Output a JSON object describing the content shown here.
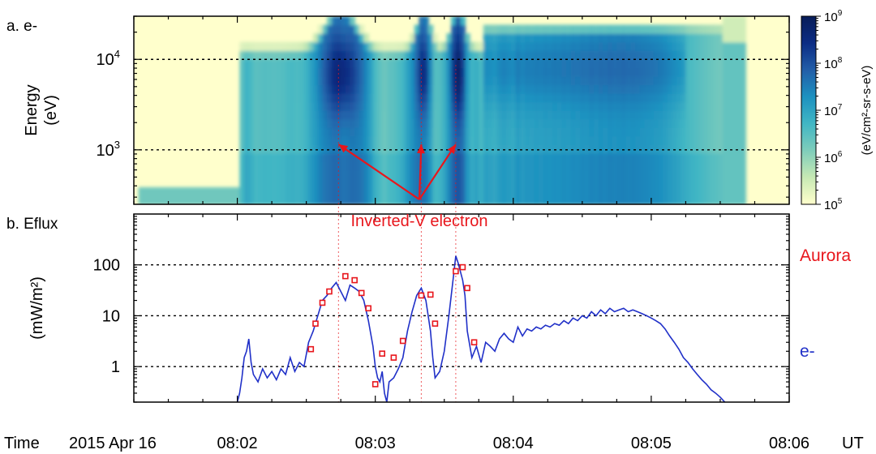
{
  "chart_data": [
    {
      "type": "heatmap",
      "panel_label": "a. e-",
      "ylabel": "Energy",
      "ylabel_unit": "(eV)",
      "yscale": "log",
      "ylim": [
        250,
        30000
      ],
      "y_ticks": [
        {
          "value": 1000,
          "base": "10",
          "exp": "3"
        },
        {
          "value": 10000,
          "base": "10",
          "exp": "4"
        }
      ],
      "xlim": [
        "08:01:15",
        "08:06:00"
      ],
      "colorbar": {
        "label": "(eV/cm²-sr-s-eV)",
        "scale": "log",
        "range": [
          100000,
          1000000000
        ],
        "ticks": [
          {
            "value": 100000,
            "base": "10",
            "exp": "5"
          },
          {
            "value": 1000000,
            "base": "10",
            "exp": "6"
          },
          {
            "value": 10000000,
            "base": "10",
            "exp": "7"
          },
          {
            "value": 100000000,
            "base": "10",
            "exp": "8"
          },
          {
            "value": 1000000000,
            "base": "10",
            "exp": "9"
          }
        ],
        "colors": [
          "#ffffcc",
          "#c7e9b4",
          "#7fcdbb",
          "#41b6c4",
          "#1d91c0",
          "#225ea8",
          "#0c2c84",
          "#081d58"
        ]
      },
      "annotation": {
        "text": "Inverted-V electron",
        "color": "#e8161c",
        "arrow_targets": [
          "08:02:44",
          "08:03:20",
          "08:03:35"
        ]
      },
      "gridlines": [
        1000,
        10000
      ]
    },
    {
      "type": "line",
      "panel_label": "b. Eflux",
      "ylabel": "(mW/m²)",
      "yscale": "log",
      "ylim": [
        0.2,
        1000
      ],
      "y_ticks": [
        "1",
        "10",
        "100"
      ],
      "y_tick_values": [
        1,
        10,
        100
      ],
      "xlim": [
        "08:01:15",
        "08:06:00"
      ],
      "series": [
        {
          "name": "Aurora",
          "color": "#e8161c",
          "marker": "square",
          "points": [
            [
              "08:02:32",
              2.2
            ],
            [
              "08:02:34",
              7
            ],
            [
              "08:02:37",
              18
            ],
            [
              "08:02:40",
              30
            ],
            [
              "08:02:47",
              60
            ],
            [
              "08:02:51",
              50
            ],
            [
              "08:02:54",
              28
            ],
            [
              "08:02:57",
              14
            ],
            [
              "08:03:00",
              0.45
            ],
            [
              "08:03:03",
              1.8
            ],
            [
              "08:03:08",
              1.5
            ],
            [
              "08:03:12",
              3.2
            ],
            [
              "08:03:20",
              25
            ],
            [
              "08:03:24",
              26
            ],
            [
              "08:03:26",
              7
            ],
            [
              "08:03:35",
              75
            ],
            [
              "08:03:38",
              90
            ],
            [
              "08:03:40",
              35
            ],
            [
              "08:03:43",
              3
            ]
          ]
        },
        {
          "name": "e-",
          "color": "#2030c8",
          "points": [
            [
              "08:02:00",
              0.2
            ],
            [
              "08:02:01",
              0.3
            ],
            [
              "08:02:02",
              0.6
            ],
            [
              "08:02:03",
              1.5
            ],
            [
              "08:02:04",
              2.0
            ],
            [
              "08:02:05",
              3.5
            ],
            [
              "08:02:06",
              1.2
            ],
            [
              "08:02:07",
              0.7
            ],
            [
              "08:02:09",
              0.5
            ],
            [
              "08:02:11",
              0.9
            ],
            [
              "08:02:13",
              0.6
            ],
            [
              "08:02:15",
              0.8
            ],
            [
              "08:02:17",
              0.55
            ],
            [
              "08:02:19",
              0.9
            ],
            [
              "08:02:21",
              0.7
            ],
            [
              "08:02:23",
              1.5
            ],
            [
              "08:02:25",
              0.8
            ],
            [
              "08:02:27",
              1.2
            ],
            [
              "08:02:29",
              1.0
            ],
            [
              "08:02:31",
              3.0
            ],
            [
              "08:02:33",
              5.0
            ],
            [
              "08:02:35",
              10
            ],
            [
              "08:02:37",
              20
            ],
            [
              "08:02:39",
              25
            ],
            [
              "08:02:41",
              35
            ],
            [
              "08:02:43",
              45
            ],
            [
              "08:02:45",
              30
            ],
            [
              "08:02:47",
              20
            ],
            [
              "08:02:49",
              40
            ],
            [
              "08:02:51",
              35
            ],
            [
              "08:02:53",
              30
            ],
            [
              "08:02:55",
              20
            ],
            [
              "08:02:57",
              8
            ],
            [
              "08:02:59",
              2.5
            ],
            [
              "08:03:00",
              1.0
            ],
            [
              "08:03:01",
              0.6
            ],
            [
              "08:03:02",
              0.5
            ],
            [
              "08:03:03",
              0.8
            ],
            [
              "08:03:04",
              0.3
            ],
            [
              "08:03:05",
              0.2
            ],
            [
              "08:03:06",
              0.5
            ],
            [
              "08:03:08",
              0.6
            ],
            [
              "08:03:10",
              0.9
            ],
            [
              "08:03:12",
              1.5
            ],
            [
              "08:03:14",
              5.0
            ],
            [
              "08:03:16",
              12
            ],
            [
              "08:03:18",
              25
            ],
            [
              "08:03:20",
              35
            ],
            [
              "08:03:22",
              20
            ],
            [
              "08:03:24",
              5.0
            ],
            [
              "08:03:25",
              1.5
            ],
            [
              "08:03:26",
              0.6
            ],
            [
              "08:03:28",
              0.8
            ],
            [
              "08:03:30",
              2.0
            ],
            [
              "08:03:32",
              10
            ],
            [
              "08:03:34",
              60
            ],
            [
              "08:03:35",
              150
            ],
            [
              "08:03:36",
              110
            ],
            [
              "08:03:38",
              50
            ],
            [
              "08:03:39",
              25
            ],
            [
              "08:03:40",
              5.0
            ],
            [
              "08:03:42",
              1.5
            ],
            [
              "08:03:44",
              2.5
            ],
            [
              "08:03:46",
              1.2
            ],
            [
              "08:03:48",
              3.0
            ],
            [
              "08:03:50",
              2.5
            ],
            [
              "08:03:52",
              2.0
            ],
            [
              "08:03:54",
              3.5
            ],
            [
              "08:03:56",
              4.5
            ],
            [
              "08:03:58",
              3.5
            ],
            [
              "08:04:00",
              3.0
            ],
            [
              "08:04:02",
              6.0
            ],
            [
              "08:04:04",
              4.0
            ],
            [
              "08:04:06",
              5.5
            ],
            [
              "08:04:08",
              5.0
            ],
            [
              "08:04:10",
              6.0
            ],
            [
              "08:04:12",
              5.5
            ],
            [
              "08:04:14",
              6.5
            ],
            [
              "08:04:16",
              6.0
            ],
            [
              "08:04:18",
              7.0
            ],
            [
              "08:04:20",
              6.5
            ],
            [
              "08:04:22",
              8.0
            ],
            [
              "08:04:24",
              7.0
            ],
            [
              "08:04:26",
              9.0
            ],
            [
              "08:04:28",
              8.0
            ],
            [
              "08:04:30",
              10
            ],
            [
              "08:04:32",
              9.0
            ],
            [
              "08:04:34",
              12
            ],
            [
              "08:04:36",
              10
            ],
            [
              "08:04:38",
              13
            ],
            [
              "08:04:40",
              11
            ],
            [
              "08:04:42",
              14
            ],
            [
              "08:04:44",
              12
            ],
            [
              "08:04:46",
              13
            ],
            [
              "08:04:48",
              14
            ],
            [
              "08:04:50",
              12
            ],
            [
              "08:04:52",
              13
            ],
            [
              "08:04:54",
              12
            ],
            [
              "08:04:56",
              11
            ],
            [
              "08:04:58",
              10
            ],
            [
              "08:05:00",
              9.0
            ],
            [
              "08:05:02",
              8.0
            ],
            [
              "08:05:04",
              7.0
            ],
            [
              "08:05:06",
              5.5
            ],
            [
              "08:05:08",
              4.0
            ],
            [
              "08:05:10",
              3.0
            ],
            [
              "08:05:12",
              2.2
            ],
            [
              "08:05:14",
              1.5
            ],
            [
              "08:05:16",
              1.2
            ],
            [
              "08:05:18",
              0.9
            ],
            [
              "08:05:20",
              0.7
            ],
            [
              "08:05:22",
              0.55
            ],
            [
              "08:05:24",
              0.45
            ],
            [
              "08:05:26",
              0.35
            ],
            [
              "08:05:28",
              0.3
            ],
            [
              "08:05:30",
              0.25
            ],
            [
              "08:05:32",
              0.2
            ]
          ]
        }
      ],
      "gridlines": [
        1,
        10,
        100
      ],
      "vertical_markers": [
        "08:02:44",
        "08:03:20",
        "08:03:35"
      ],
      "vertical_marker_color": "#e8161c"
    }
  ],
  "time_axis": {
    "prefix": "Time",
    "date": "2015 Apr 16",
    "ticks": [
      "08:02",
      "08:03",
      "08:04",
      "08:05",
      "08:06"
    ],
    "unit": "UT"
  }
}
